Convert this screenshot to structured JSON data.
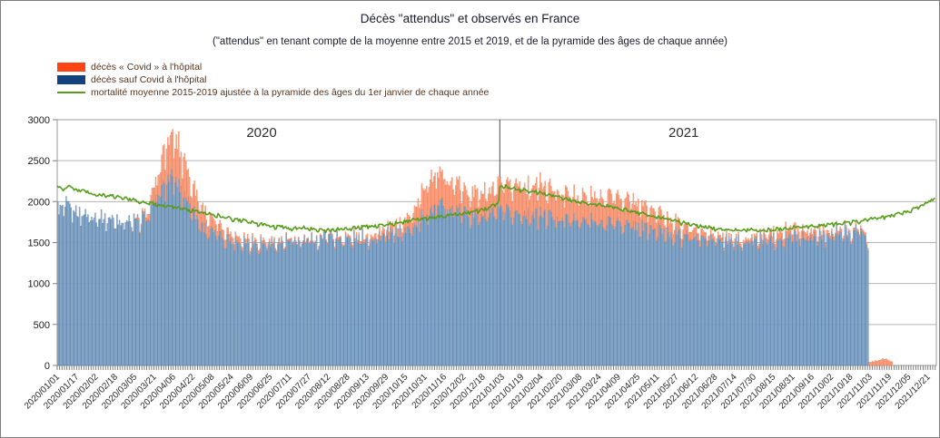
{
  "header": {
    "title": "Décès \"attendus\" et observés en France",
    "subtitle": "(\"attendus\" en tenant compte de la moyenne entre 2015 et 2019, et de la pyramide des âges de chaque année)"
  },
  "legend": {
    "items": [
      {
        "label": "décès « Covid » à l'hôpital",
        "swatch_color": "#ff4414",
        "type": "bar"
      },
      {
        "label": "décès sauf Covid à l'hôpital",
        "swatch_color": "#12417f",
        "type": "bar"
      },
      {
        "label": "mortalité moyenne 2015-2019 ajustée à la pyramide des âges du 1er janvier de chaque année",
        "swatch_color": "#579d1c",
        "type": "line"
      }
    ]
  },
  "chart_data": {
    "type": "bar",
    "stacked": true,
    "title": "Décès \"attendus\" et observés en France",
    "x_axis": {
      "start_date": "2020/01/01",
      "end_date": "2021/12/27",
      "days_total": 727,
      "tick_interval_days": 16,
      "minor_tick_interval_days": 2,
      "tick_labels": [
        "2020/01/01",
        "2020/01/17",
        "2020/02/02",
        "2020/02/18",
        "2020/03/05",
        "2020/03/21",
        "2020/04/06",
        "2020/04/22",
        "2020/05/08",
        "2020/05/24",
        "2020/06/09",
        "2020/06/25",
        "2020/07/11",
        "2020/07/27",
        "2020/08/12",
        "2020/08/28",
        "2020/09/13",
        "2020/09/29",
        "2020/10/15",
        "2020/10/31",
        "2020/11/16",
        "2020/12/02",
        "2020/12/18",
        "2021/01/03",
        "2021/01/19",
        "2021/02/04",
        "2021/02/20",
        "2021/03/08",
        "2021/03/24",
        "2021/04/09",
        "2021/04/25",
        "2021/05/11",
        "2021/05/27",
        "2021/06/12",
        "2021/06/28",
        "2021/07/14",
        "2021/07/30",
        "2021/08/15",
        "2021/08/31",
        "2021/09/16",
        "2021/10/02",
        "2021/10/18",
        "2021/11/03",
        "2021/11/19",
        "2021/12/05",
        "2021/12/21"
      ]
    },
    "y_axis": {
      "min": 0,
      "max": 3000,
      "tick_step": 500,
      "tick_labels": [
        "0",
        "500",
        "1000",
        "1500",
        "2000",
        "2500",
        "3000"
      ]
    },
    "grid": true,
    "legend_position": "top-left",
    "year_annotations": [
      {
        "label": "2020",
        "day_center": 169
      },
      {
        "label": "2021",
        "day_center": 518
      }
    ],
    "year_divider_day": 366,
    "colors": {
      "grid": "#b5b5b5",
      "plot_border": "#9a9a9a",
      "axis_text": "#1a1a1a",
      "date_text": "#2b2b2b",
      "year_text": "#2e2e2e",
      "divider": "#4d4d4d",
      "tick": "#7f7f7f"
    },
    "noise": {
      "bar_base_rel": 0.045,
      "bar_top_rel": 0.18,
      "line_abs": 18,
      "weekly_dip": [
        1.02,
        1.0,
        0.995,
        1.0,
        0.99,
        0.935,
        0.955
      ]
    },
    "series": [
      {
        "name": "décès sauf Covid à l'hôpital",
        "role": "bar-base",
        "fill": "#a6c3dd",
        "stroke": "#4a76a4",
        "legend_color": "#12417f",
        "end_day": 670,
        "anchors": [
          [
            0,
            1900
          ],
          [
            7,
            1950
          ],
          [
            14,
            1900
          ],
          [
            21,
            1860
          ],
          [
            28,
            1850
          ],
          [
            42,
            1800
          ],
          [
            56,
            1780
          ],
          [
            63,
            1760
          ],
          [
            70,
            1790
          ],
          [
            77,
            1900
          ],
          [
            84,
            2120
          ],
          [
            91,
            2280
          ],
          [
            95,
            2300
          ],
          [
            98,
            2250
          ],
          [
            105,
            2100
          ],
          [
            112,
            1900
          ],
          [
            119,
            1720
          ],
          [
            126,
            1650
          ],
          [
            133,
            1600
          ],
          [
            140,
            1560
          ],
          [
            147,
            1530
          ],
          [
            161,
            1510
          ],
          [
            175,
            1500
          ],
          [
            189,
            1520
          ],
          [
            203,
            1520
          ],
          [
            217,
            1560
          ],
          [
            224,
            1620
          ],
          [
            231,
            1560
          ],
          [
            245,
            1550
          ],
          [
            259,
            1570
          ],
          [
            273,
            1600
          ],
          [
            287,
            1650
          ],
          [
            294,
            1700
          ],
          [
            301,
            1800
          ],
          [
            308,
            1930
          ],
          [
            315,
            1970
          ],
          [
            322,
            1950
          ],
          [
            329,
            1900
          ],
          [
            336,
            1880
          ],
          [
            350,
            1850
          ],
          [
            364,
            1880
          ],
          [
            378,
            1870
          ],
          [
            392,
            1860
          ],
          [
            406,
            1840
          ],
          [
            420,
            1800
          ],
          [
            434,
            1780
          ],
          [
            448,
            1760
          ],
          [
            462,
            1760
          ],
          [
            476,
            1720
          ],
          [
            490,
            1680
          ],
          [
            504,
            1630
          ],
          [
            518,
            1590
          ],
          [
            532,
            1560
          ],
          [
            546,
            1540
          ],
          [
            560,
            1520
          ],
          [
            574,
            1530
          ],
          [
            588,
            1560
          ],
          [
            602,
            1580
          ],
          [
            616,
            1590
          ],
          [
            630,
            1600
          ],
          [
            644,
            1620
          ],
          [
            658,
            1650
          ],
          [
            665,
            1680
          ],
          [
            668,
            1620
          ],
          [
            670,
            1470
          ]
        ]
      },
      {
        "name": "décès « Covid » à l'hôpital",
        "role": "bar-top",
        "fill": "#fcb79c",
        "stroke": "#f3764b",
        "legend_color": "#ff4414",
        "end_day": 690,
        "anchors": [
          [
            0,
            0
          ],
          [
            60,
            0
          ],
          [
            66,
            10
          ],
          [
            73,
            45
          ],
          [
            80,
            180
          ],
          [
            87,
            380
          ],
          [
            91,
            480
          ],
          [
            95,
            545
          ],
          [
            98,
            520
          ],
          [
            105,
            430
          ],
          [
            112,
            310
          ],
          [
            119,
            230
          ],
          [
            126,
            160
          ],
          [
            133,
            120
          ],
          [
            140,
            90
          ],
          [
            147,
            70
          ],
          [
            154,
            55
          ],
          [
            161,
            45
          ],
          [
            168,
            35
          ],
          [
            175,
            28
          ],
          [
            182,
            22
          ],
          [
            189,
            18
          ],
          [
            196,
            15
          ],
          [
            210,
            14
          ],
          [
            224,
            18
          ],
          [
            238,
            24
          ],
          [
            252,
            36
          ],
          [
            266,
            60
          ],
          [
            280,
            95
          ],
          [
            287,
            130
          ],
          [
            294,
            190
          ],
          [
            301,
            290
          ],
          [
            308,
            400
          ],
          [
            315,
            390
          ],
          [
            322,
            350
          ],
          [
            329,
            310
          ],
          [
            336,
            290
          ],
          [
            343,
            270
          ],
          [
            350,
            260
          ],
          [
            357,
            270
          ],
          [
            364,
            300
          ],
          [
            371,
            340
          ],
          [
            385,
            370
          ],
          [
            399,
            360
          ],
          [
            413,
            320
          ],
          [
            427,
            300
          ],
          [
            441,
            300
          ],
          [
            455,
            320
          ],
          [
            462,
            330
          ],
          [
            469,
            320
          ],
          [
            483,
            280
          ],
          [
            497,
            220
          ],
          [
            511,
            150
          ],
          [
            525,
            105
          ],
          [
            539,
            65
          ],
          [
            553,
            42
          ],
          [
            567,
            35
          ],
          [
            581,
            52
          ],
          [
            595,
            90
          ],
          [
            602,
            100
          ],
          [
            616,
            85
          ],
          [
            630,
            58
          ],
          [
            644,
            40
          ],
          [
            658,
            32
          ],
          [
            670,
            35
          ],
          [
            674,
            50
          ],
          [
            680,
            65
          ],
          [
            683,
            80
          ],
          [
            686,
            70
          ],
          [
            690,
            40
          ]
        ]
      },
      {
        "name": "mortalité moyenne 2015-2019 ajustée à la pyramide des âges du 1er janvier de chaque année",
        "role": "line",
        "stroke": "#579d1c",
        "anchors": [
          [
            0,
            2180
          ],
          [
            7,
            2160
          ],
          [
            10,
            2200
          ],
          [
            14,
            2150
          ],
          [
            21,
            2130
          ],
          [
            28,
            2100
          ],
          [
            32,
            2070
          ],
          [
            35,
            2090
          ],
          [
            49,
            2060
          ],
          [
            63,
            2020
          ],
          [
            77,
            1980
          ],
          [
            91,
            1945
          ],
          [
            105,
            1910
          ],
          [
            119,
            1870
          ],
          [
            133,
            1830
          ],
          [
            147,
            1785
          ],
          [
            161,
            1745
          ],
          [
            175,
            1705
          ],
          [
            189,
            1685
          ],
          [
            196,
            1670
          ],
          [
            203,
            1685
          ],
          [
            217,
            1660
          ],
          [
            224,
            1650
          ],
          [
            238,
            1670
          ],
          [
            252,
            1690
          ],
          [
            266,
            1710
          ],
          [
            280,
            1740
          ],
          [
            294,
            1770
          ],
          [
            308,
            1800
          ],
          [
            322,
            1830
          ],
          [
            336,
            1860
          ],
          [
            350,
            1900
          ],
          [
            357,
            1930
          ],
          [
            364,
            1980
          ],
          [
            365,
            2010
          ],
          [
            366,
            2190
          ],
          [
            378,
            2160
          ],
          [
            392,
            2130
          ],
          [
            406,
            2090
          ],
          [
            420,
            2040
          ],
          [
            434,
            1990
          ],
          [
            448,
            1960
          ],
          [
            462,
            1930
          ],
          [
            476,
            1880
          ],
          [
            490,
            1835
          ],
          [
            504,
            1790
          ],
          [
            518,
            1740
          ],
          [
            532,
            1700
          ],
          [
            546,
            1670
          ],
          [
            560,
            1650
          ],
          [
            574,
            1650
          ],
          [
            588,
            1655
          ],
          [
            602,
            1670
          ],
          [
            616,
            1690
          ],
          [
            630,
            1710
          ],
          [
            644,
            1730
          ],
          [
            658,
            1750
          ],
          [
            672,
            1790
          ],
          [
            686,
            1820
          ],
          [
            700,
            1870
          ],
          [
            707,
            1900
          ],
          [
            714,
            1950
          ],
          [
            721,
            2005
          ],
          [
            724,
            2020
          ],
          [
            726,
            2065
          ]
        ]
      }
    ]
  }
}
